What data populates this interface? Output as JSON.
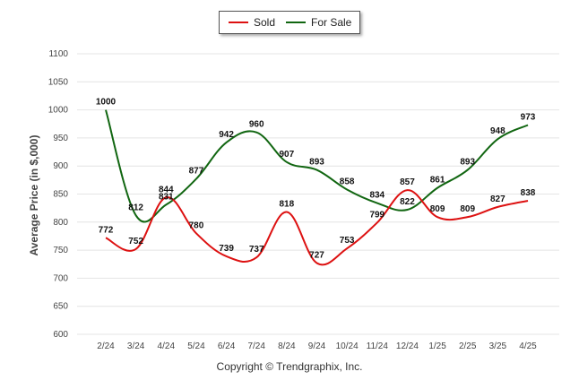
{
  "legend": {
    "sold_label": "Sold",
    "forsale_label": "For Sale"
  },
  "footer": "Copyright © Trendgraphix, Inc.",
  "colors": {
    "sold": "#dd1111",
    "forsale": "#116611",
    "grid": "#e4e4e4"
  },
  "chart_data": {
    "type": "line",
    "ylabel": "Average Price (in $,000)",
    "ylim": [
      600,
      1100
    ],
    "yticks": [
      600,
      650,
      700,
      750,
      800,
      850,
      900,
      950,
      1000,
      1050,
      1100
    ],
    "grid": true,
    "legend_position": "top-center",
    "categories": [
      "2/24",
      "3/24",
      "4/24",
      "5/24",
      "6/24",
      "7/24",
      "8/24",
      "9/24",
      "10/24",
      "11/24",
      "12/24",
      "1/25",
      "2/25",
      "3/25",
      "4/25"
    ],
    "series": [
      {
        "name": "Sold",
        "values": [
          772,
          752,
          844,
          780,
          739,
          737,
          818,
          727,
          753,
          799,
          857,
          809,
          809,
          827,
          838
        ]
      },
      {
        "name": "For Sale",
        "values": [
          1000,
          812,
          831,
          877,
          942,
          960,
          907,
          893,
          858,
          834,
          822,
          861,
          893,
          948,
          973
        ]
      }
    ]
  }
}
